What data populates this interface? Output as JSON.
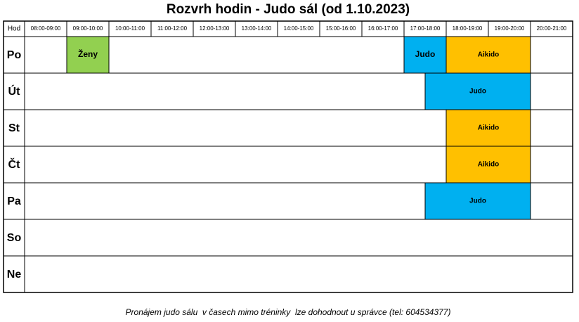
{
  "header": {
    "title": "Rozvrh hodin - Judo sál (od 1.10.2023)"
  },
  "table": {
    "corner": "Hod",
    "columns": [
      "08:00-09:00",
      "09:00-10:00",
      "10:00-11:00",
      "11:00-12:00",
      "12:00-13:00",
      "13:00-14:00",
      "14:00-15:00",
      "15:00-16:00",
      "16:00-17:00",
      "17:00-18:00",
      "18:00-19:00",
      "19:00-20:00",
      "20:00-21:00"
    ],
    "days": [
      "Po",
      "Út",
      "St",
      "Čt",
      "Pa",
      "So",
      "Ne"
    ],
    "events": [
      {
        "day": 0,
        "start": 9,
        "end": 10,
        "label": "Ženy",
        "color": "#92d050"
      },
      {
        "day": 0,
        "start": 17,
        "end": 18,
        "label": "Judo",
        "color": "#00b0f0"
      },
      {
        "day": 0,
        "start": 18,
        "end": 20,
        "label": "Aikido",
        "color": "#ffc000"
      },
      {
        "day": 1,
        "start": 17.5,
        "end": 20,
        "label": "Judo",
        "color": "#00b0f0"
      },
      {
        "day": 2,
        "start": 18,
        "end": 20,
        "label": "Aikido",
        "color": "#ffc000"
      },
      {
        "day": 3,
        "start": 18,
        "end": 20,
        "label": "Aikido",
        "color": "#ffc000"
      },
      {
        "day": 4,
        "start": 17.5,
        "end": 20,
        "label": "Judo",
        "color": "#00b0f0"
      }
    ]
  },
  "footer": {
    "note": "Pronájem judo sálu  v časech mimo tréninky  lze dohodnout u správce (tel: 604534377)"
  }
}
